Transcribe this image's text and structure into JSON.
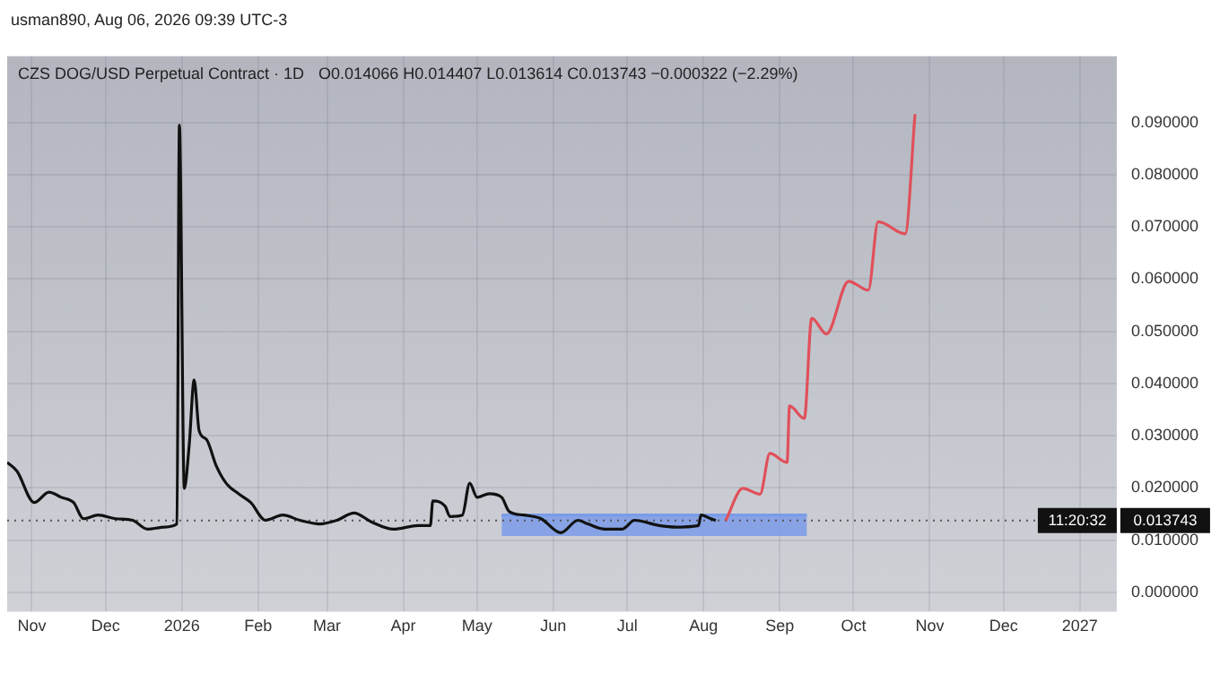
{
  "chart_data": {
    "type": "line",
    "title": "CZS DOG/USD Perpetual Contract · 1D",
    "subtitle": "usman890, Aug 06, 2026 09:39 UTC-3",
    "annotations": [
      "O0.014066 H0.014407 L0.013614 C0.013743 −0.000322 (−2.29%)",
      "11:20:32"
    ],
    "series": [
      {
        "color": "#111111",
        "x": [
          "2025-10-22",
          "2025-10-26",
          "2025-11-02",
          "2025-11-08",
          "2025-11-13",
          "2025-11-18",
          "2025-11-22",
          "2025-11-28",
          "2025-12-05",
          "2025-12-12",
          "2025-12-18",
          "2025-12-25",
          "2025-12-30",
          "2025-12-31",
          "2026-01-02",
          "2026-01-04",
          "2026-01-06",
          "2026-01-08",
          "2026-01-11",
          "2026-01-15",
          "2026-01-19",
          "2026-01-24",
          "2026-01-29",
          "2026-02-04",
          "2026-02-11",
          "2026-02-18",
          "2026-02-26",
          "2026-03-05",
          "2026-03-12",
          "2026-03-19",
          "2026-03-28",
          "2026-04-07",
          "2026-04-12",
          "2026-04-13",
          "2026-04-18",
          "2026-04-20",
          "2026-04-25",
          "2026-04-28",
          "2026-05-01",
          "2026-05-06",
          "2026-05-11",
          "2026-05-14",
          "2026-05-20",
          "2026-05-27",
          "2026-06-04",
          "2026-06-11",
          "2026-06-15",
          "2026-06-22",
          "2026-06-29",
          "2026-07-04",
          "2026-07-14",
          "2026-07-21",
          "2026-07-30",
          "2026-07-31",
          "2026-08-04",
          "2026-08-06"
        ],
        "values": [
          0.0249,
          0.0232,
          0.0172,
          0.0192,
          0.0182,
          0.0172,
          0.0141,
          0.0148,
          0.0141,
          0.0138,
          0.0121,
          0.0125,
          0.0131,
          0.0895,
          0.0199,
          0.0283,
          0.0407,
          0.031,
          0.0293,
          0.0242,
          0.0209,
          0.0189,
          0.0172,
          0.0138,
          0.0148,
          0.0138,
          0.0131,
          0.0138,
          0.0152,
          0.0135,
          0.0121,
          0.0128,
          0.0128,
          0.0175,
          0.0165,
          0.0145,
          0.0148,
          0.0209,
          0.0182,
          0.0189,
          0.0182,
          0.0155,
          0.0148,
          0.0141,
          0.0114,
          0.0138,
          0.0131,
          0.0121,
          0.0121,
          0.0138,
          0.0128,
          0.0125,
          0.0128,
          0.0148,
          0.0141,
          0.013743
        ]
      },
      {
        "color": "#e0505a",
        "x": [
          "2026-08-10",
          "2026-08-17",
          "2026-08-24",
          "2026-08-28",
          "2026-09-04",
          "2026-09-05",
          "2026-09-11",
          "2026-09-14",
          "2026-09-20",
          "2026-09-29",
          "2026-10-07",
          "2026-10-11",
          "2026-10-22",
          "2026-10-26"
        ],
        "values": [
          0.0137,
          0.0199,
          0.0188,
          0.0266,
          0.0249,
          0.0357,
          0.0333,
          0.0525,
          0.0495,
          0.0596,
          0.0579,
          0.071,
          0.0687,
          0.0916
        ]
      },
      {
        "color": "#7b9be8",
        "x": [
          "2026-05-11",
          "2026-09-12"
        ],
        "values": [
          0.0148,
          0.0148
        ],
        "lower": [
          0.0108,
          0.0108
        ],
        "upper": [
          0.0148,
          0.0148
        ]
      }
    ],
    "ref_lines": [
      {
        "axis": "y",
        "value": 0.013743,
        "label": "0.013743",
        "line_style": "dotted",
        "color": "#555555"
      }
    ],
    "xlim": [
      "2025-10-22",
      "2027-01-16"
    ],
    "xticks": [
      {
        "value": "2025-11-01",
        "label": "Nov"
      },
      {
        "value": "2025-12-01",
        "label": "Dec"
      },
      {
        "value": "2026-01-01",
        "label": "2026"
      },
      {
        "value": "2026-02-01",
        "label": "Feb"
      },
      {
        "value": "2026-03-01",
        "label": "Mar"
      },
      {
        "value": "2026-04-01",
        "label": "Apr"
      },
      {
        "value": "2026-05-01",
        "label": "May"
      },
      {
        "value": "2026-06-01",
        "label": "Jun"
      },
      {
        "value": "2026-07-01",
        "label": "Jul"
      },
      {
        "value": "2026-08-01",
        "label": "Aug"
      },
      {
        "value": "2026-09-01",
        "label": "Sep"
      },
      {
        "value": "2026-10-01",
        "label": "Oct"
      },
      {
        "value": "2026-11-01",
        "label": "Nov"
      },
      {
        "value": "2026-12-01",
        "label": "Dec"
      },
      {
        "value": "2027-01-01",
        "label": "2027"
      }
    ],
    "ylim": [
      -0.0037,
      0.1027
    ],
    "yticks": [
      {
        "value": 0,
        "label": "0.000000"
      },
      {
        "value": 0.01,
        "label": "0.010000"
      },
      {
        "value": 0.02,
        "label": "0.020000"
      },
      {
        "value": 0.03,
        "label": "0.030000"
      },
      {
        "value": 0.04,
        "label": "0.040000"
      },
      {
        "value": 0.05,
        "label": "0.050000"
      },
      {
        "value": 0.06,
        "label": "0.060000"
      },
      {
        "value": 0.07,
        "label": "0.070000"
      },
      {
        "value": 0.08,
        "label": "0.080000"
      },
      {
        "value": 0.09,
        "label": "0.090000"
      }
    ],
    "grid": true,
    "legend": false,
    "marker": "none"
  }
}
